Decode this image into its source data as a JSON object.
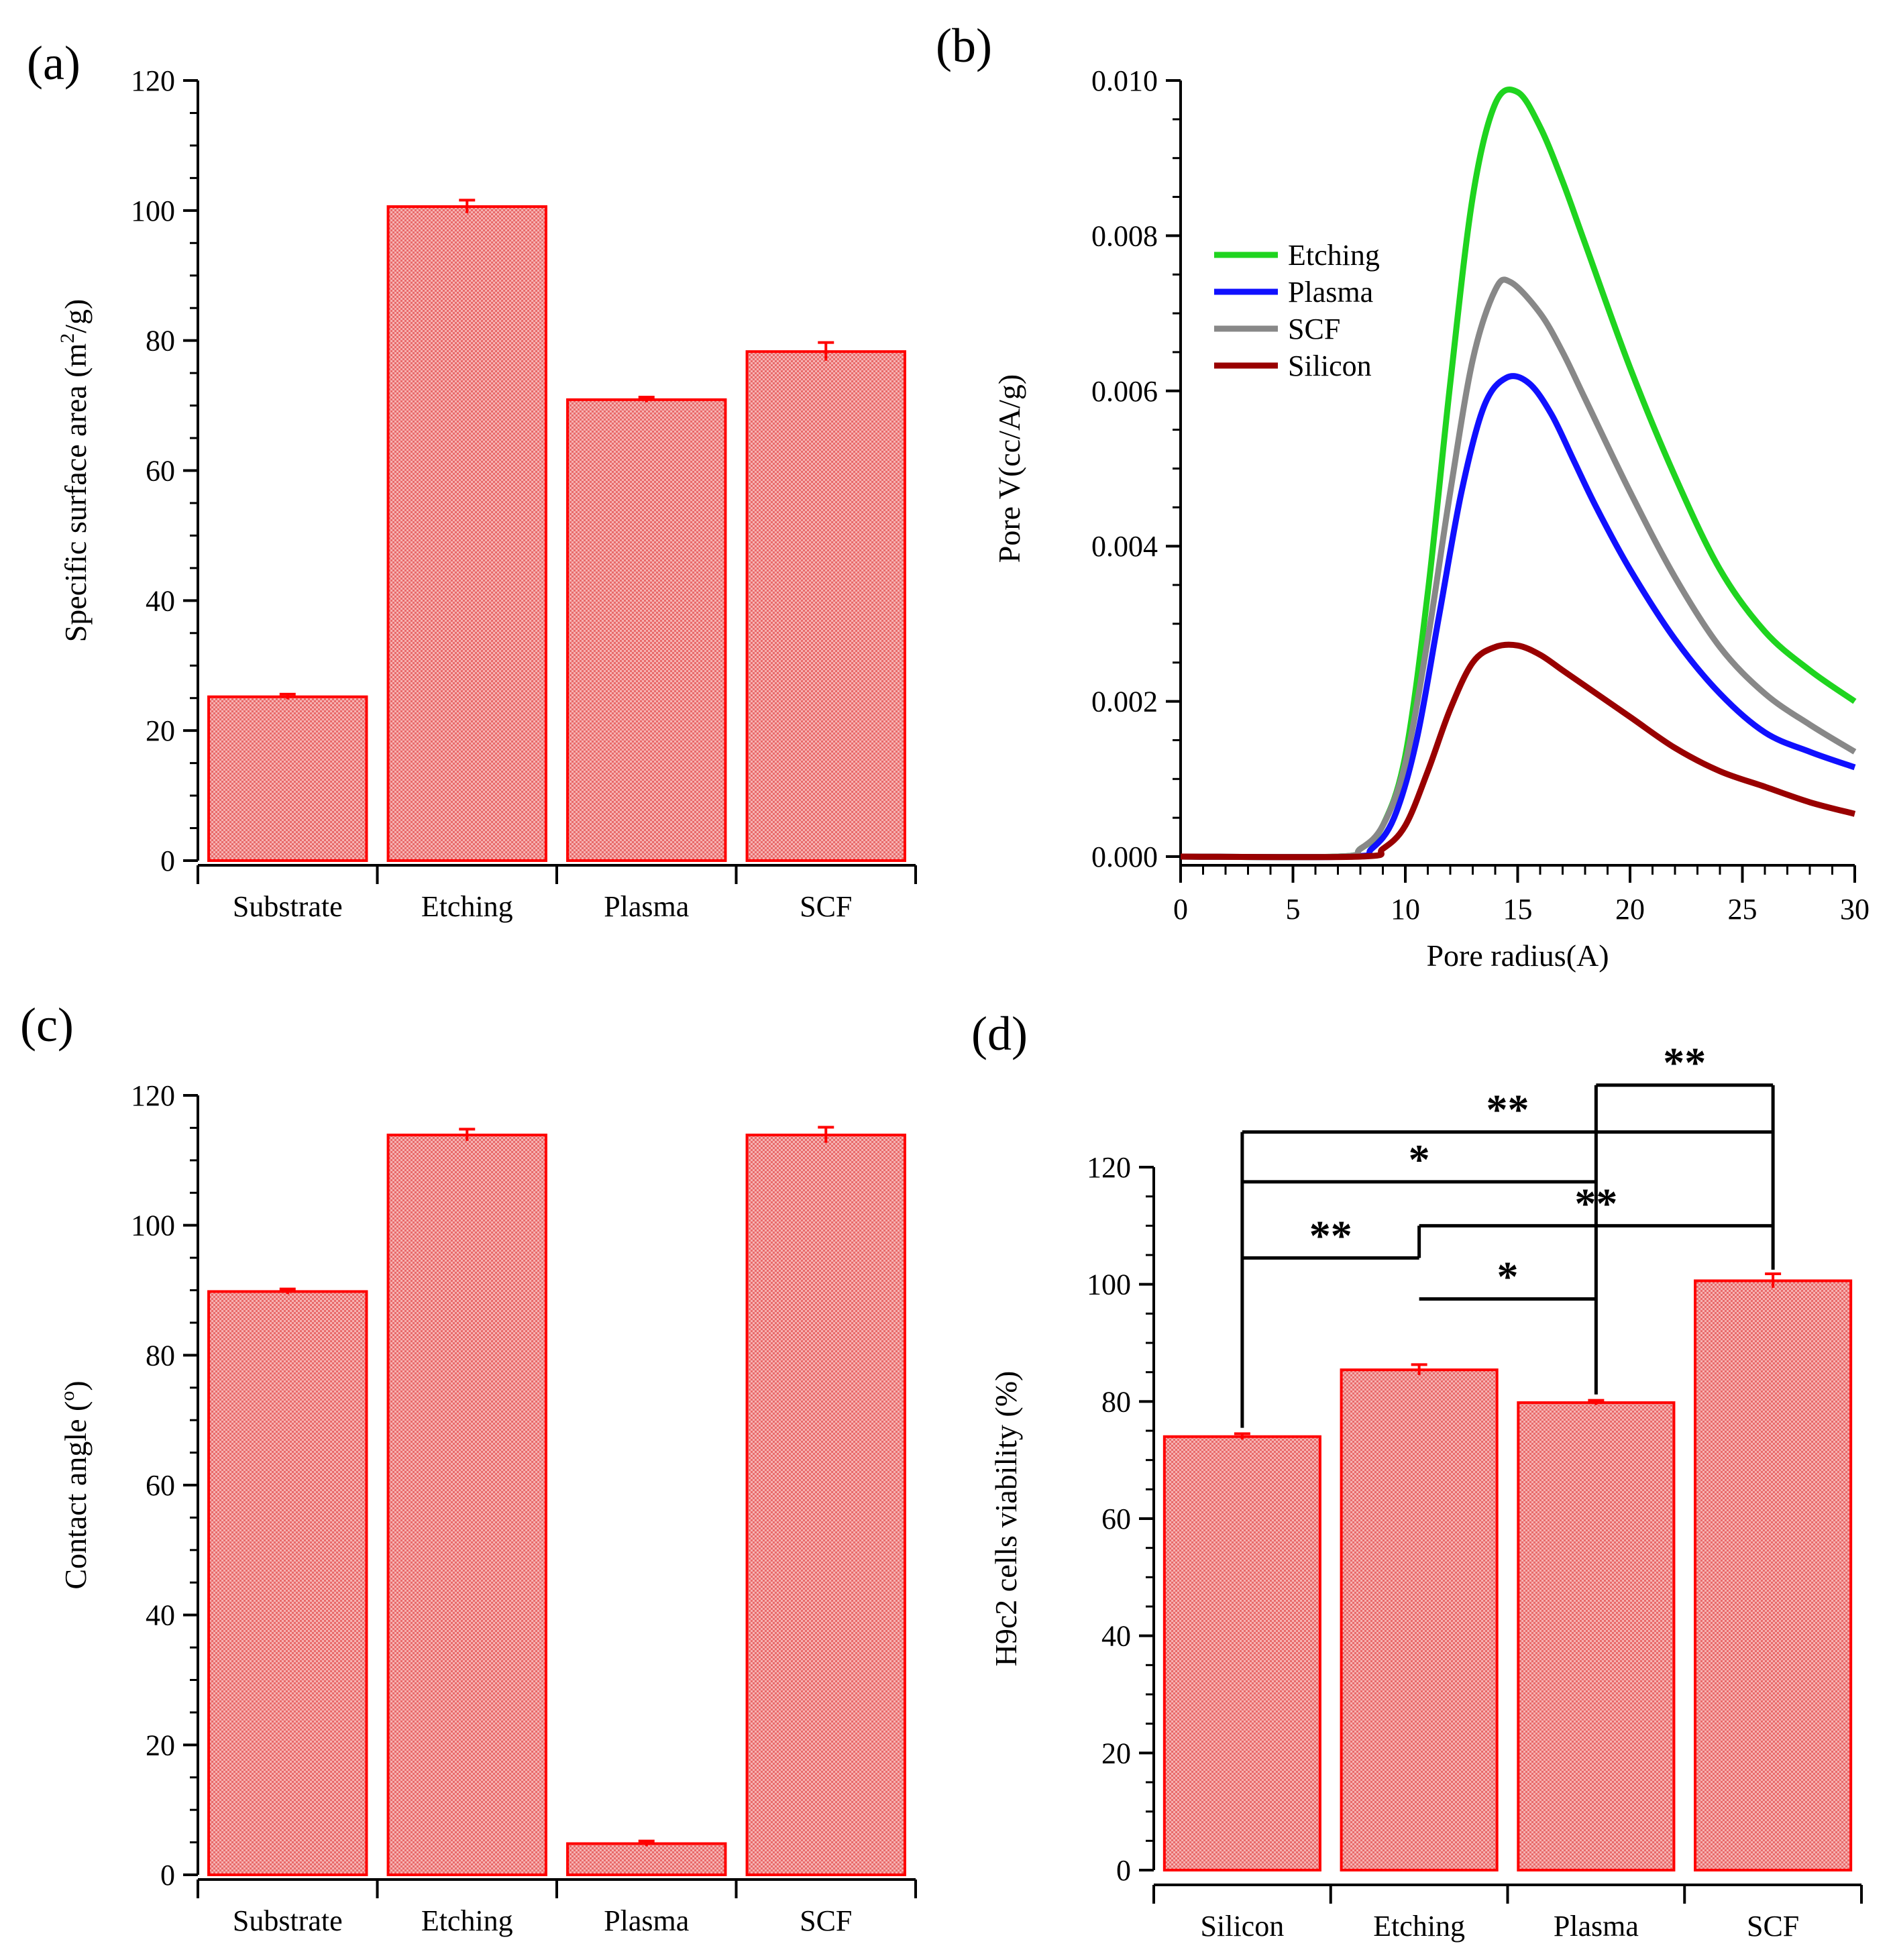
{
  "colors": {
    "bar_fill": "#f3a0a0",
    "bar_edge": "#ff0000",
    "error_bar": "#ff0000",
    "axis": "#000000",
    "etching_line": "#1fd41f",
    "plasma_line": "#1010ff",
    "scf_line": "#888888",
    "silicon_line": "#990000"
  },
  "chart_data": [
    {
      "panel": "(a)",
      "type": "bar",
      "categories": [
        "Substrate",
        "Etching",
        "Plasma",
        "SCF"
      ],
      "values": [
        25.2,
        100.6,
        70.9,
        78.3
      ],
      "errors": [
        0.4,
        1.0,
        0.4,
        1.4
      ],
      "ylabel": "Specific surface area (m",
      "ylabel_sup": "2",
      "ylabel_tail": "/g)",
      "xlabel": "",
      "ylim": [
        0,
        120
      ],
      "yticks": [
        "0",
        "20",
        "40",
        "60",
        "80",
        "100",
        "120"
      ]
    },
    {
      "panel": "(b)",
      "type": "line",
      "xlabel": "Pore radius(A)",
      "ylabel": "Pore V(cc/A/g)",
      "xlim": [
        0,
        30
      ],
      "ylim": [
        0,
        0.01
      ],
      "xticks": [
        "0",
        "5",
        "10",
        "15",
        "20",
        "25",
        "30"
      ],
      "yticks": [
        "0.000",
        "0.002",
        "0.004",
        "0.006",
        "0.008",
        "0.010"
      ],
      "legend_position": "upper-left",
      "series": [
        {
          "name": "Etching",
          "color_key": "etching_line",
          "x": [
            0,
            7.0,
            8.0,
            9.0,
            10.0,
            11.0,
            12.0,
            13.0,
            14.0,
            15.0,
            16.0,
            17.0,
            18.0,
            20.0,
            22.0,
            24.0,
            26.0,
            28.0,
            30.0
          ],
          "y": [
            0,
            0,
            0.0001,
            0.0004,
            0.0013,
            0.0034,
            0.0061,
            0.0085,
            0.0097,
            0.00985,
            0.0094,
            0.0087,
            0.0079,
            0.0063,
            0.0049,
            0.0037,
            0.0029,
            0.0024,
            0.002
          ]
        },
        {
          "name": "Plasma",
          "color_key": "plasma_line",
          "x": [
            0,
            7.5,
            8.5,
            9.5,
            10.5,
            11.5,
            12.5,
            13.5,
            14.5,
            15.5,
            16.5,
            17.5,
            18.5,
            20.0,
            22.0,
            24.0,
            26.0,
            28.0,
            30.0
          ],
          "y": [
            0,
            0,
            0.0001,
            0.0005,
            0.0015,
            0.0031,
            0.0047,
            0.0058,
            0.00617,
            0.0061,
            0.0057,
            0.0051,
            0.0045,
            0.0037,
            0.0028,
            0.0021,
            0.0016,
            0.00135,
            0.00115
          ]
        },
        {
          "name": "SCF",
          "color_key": "scf_line",
          "x": [
            0,
            7.0,
            8.0,
            9.0,
            10.0,
            11.0,
            12.0,
            13.0,
            14.0,
            14.7,
            16.0,
            17.0,
            18.0,
            20.0,
            22.0,
            24.0,
            26.0,
            28.0,
            30.0
          ],
          "y": [
            0,
            0,
            0.0001,
            0.0004,
            0.0012,
            0.0028,
            0.0047,
            0.0064,
            0.0073,
            0.0074,
            0.007,
            0.0065,
            0.0059,
            0.0047,
            0.0036,
            0.0027,
            0.0021,
            0.0017,
            0.00135
          ]
        },
        {
          "name": "Silicon",
          "color_key": "silicon_line",
          "x": [
            0,
            8.0,
            9.0,
            10.0,
            11.0,
            12.0,
            13.0,
            14.0,
            15.0,
            16.0,
            17.0,
            18.0,
            20.0,
            22.0,
            24.0,
            26.0,
            28.0,
            30.0
          ],
          "y": [
            0,
            0,
            0.0001,
            0.0004,
            0.0011,
            0.0019,
            0.0025,
            0.0027,
            0.00272,
            0.0026,
            0.0024,
            0.0022,
            0.0018,
            0.0014,
            0.0011,
            0.0009,
            0.0007,
            0.00055
          ]
        }
      ]
    },
    {
      "panel": "(c)",
      "type": "bar",
      "categories": [
        "Substrate",
        "Etching",
        "Plasma",
        "SCF"
      ],
      "values": [
        89.8,
        113.9,
        4.8,
        113.9
      ],
      "errors": [
        0.4,
        0.9,
        0.4,
        1.2
      ],
      "ylabel": "Contact angle (",
      "ylabel_sup": "o",
      "ylabel_tail": ")",
      "xlabel": "",
      "ylim": [
        0,
        120
      ],
      "yticks": [
        "0",
        "20",
        "40",
        "60",
        "80",
        "100",
        "120"
      ]
    },
    {
      "panel": "(d)",
      "type": "bar",
      "categories": [
        "Silicon",
        "Etching",
        "Plasma",
        "SCF"
      ],
      "values": [
        74.0,
        85.4,
        79.8,
        100.6
      ],
      "errors": [
        0.5,
        0.9,
        0.4,
        1.2
      ],
      "ylabel": "H9c2 cells viability (%)",
      "xlabel": "",
      "ylim": [
        0,
        120
      ],
      "yticks": [
        "0",
        "20",
        "40",
        "60",
        "80",
        "100",
        "120"
      ],
      "significance": [
        {
          "from": 0,
          "to": 1,
          "level": 104.5,
          "label": "**"
        },
        {
          "from": 1,
          "to": 2,
          "level": 97.5,
          "label": "*"
        },
        {
          "from": 1,
          "to": 3,
          "level": 110.0,
          "label": "**"
        },
        {
          "from": 0,
          "to": 2,
          "level": 117.5,
          "label": "*"
        },
        {
          "from": 0,
          "to": 3,
          "level": 126.0,
          "label": "**"
        },
        {
          "from": 2,
          "to": 3,
          "level": 134.0,
          "label": "**"
        }
      ]
    }
  ]
}
